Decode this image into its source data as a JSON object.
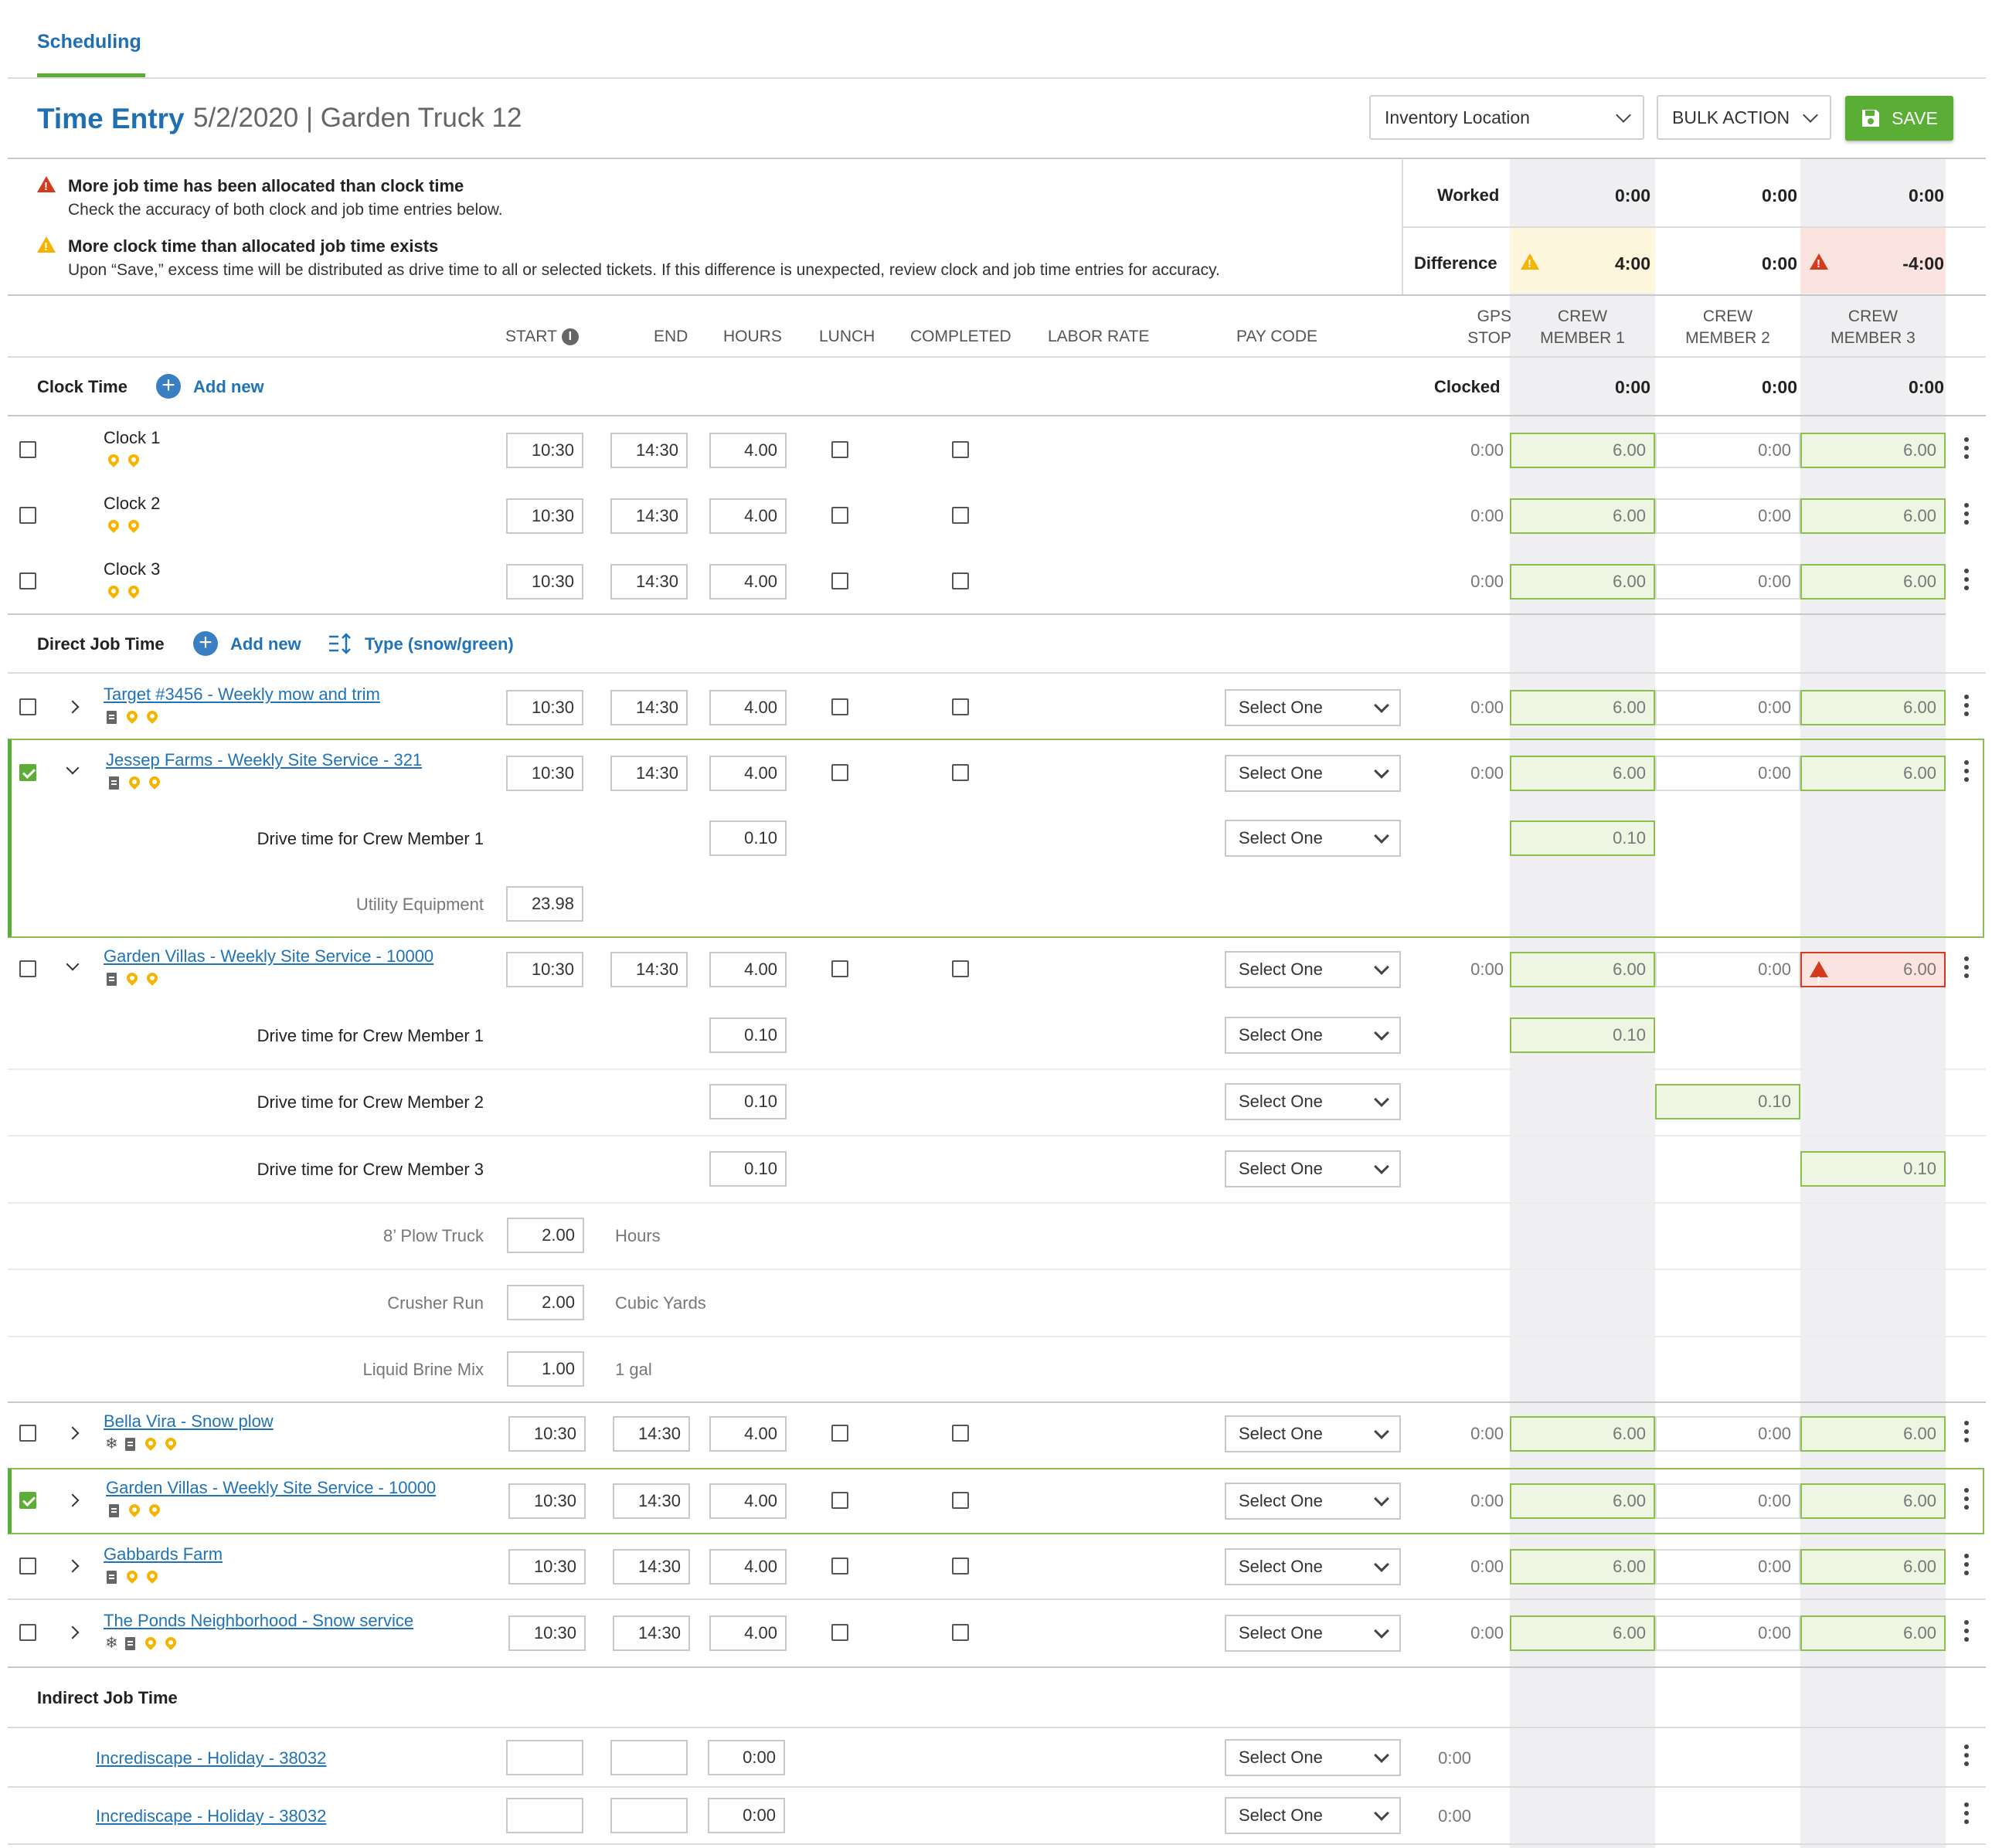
{
  "tabs": {
    "active": "Scheduling"
  },
  "header": {
    "title": "Time Entry",
    "subtitle": "5/2/2020 | Garden Truck 12",
    "inventory_placeholder": "Inventory Location",
    "bulk_action": "BULK ACTION",
    "save": "SAVE"
  },
  "alerts": [
    {
      "title": "More job time has been allocated than clock time",
      "text": "Check the accuracy of both clock and job time entries below.",
      "level": "error"
    },
    {
      "title": "More clock time than allocated job time exists",
      "text": "Upon “Save,” excess time will be distributed as drive time to all or selected tickets. If this difference is unexpected, review clock and job time entries for accuracy.",
      "level": "warning"
    }
  ],
  "summary": {
    "worked_label": "Worked",
    "worked": [
      "0:00",
      "0:00",
      "0:00"
    ],
    "difference_label": "Difference",
    "difference": [
      "4:00",
      "0:00",
      "-4:00"
    ]
  },
  "columns": {
    "start": "START",
    "end": "END",
    "hours": "HOURS",
    "lunch": "LUNCH",
    "completed": "COMPLETED",
    "labor_rate": "LABOR RATE",
    "pay_code": "PAY CODE",
    "gps_stop": [
      "GPS",
      "STOP"
    ],
    "crew": [
      [
        "CREW",
        "MEMBER 1"
      ],
      [
        "CREW",
        "MEMBER 2"
      ],
      [
        "CREW",
        "MEMBER 3"
      ]
    ]
  },
  "clock_section": {
    "title": "Clock Time",
    "add_new": "Add new",
    "clocked_label": "Clocked",
    "clocked": [
      "0:00",
      "0:00",
      "0:00"
    ]
  },
  "clocks": [
    {
      "name": "Clock 1",
      "start": "10:30",
      "end": "14:30",
      "hours": "4.00",
      "gps": "0:00",
      "crew": [
        "6.00",
        "0:00",
        "6.00"
      ]
    },
    {
      "name": "Clock 2",
      "start": "10:30",
      "end": "14:30",
      "hours": "4.00",
      "gps": "0:00",
      "crew": [
        "6.00",
        "0:00",
        "6.00"
      ]
    },
    {
      "name": "Clock 3",
      "start": "10:30",
      "end": "14:30",
      "hours": "4.00",
      "gps": "0:00",
      "crew": [
        "6.00",
        "0:00",
        "6.00"
      ]
    }
  ],
  "direct_section": {
    "title": "Direct Job Time",
    "add_new": "Add new",
    "type_toggle": "Type (snow/green)"
  },
  "select_one": "Select One",
  "jobs": {
    "j1": {
      "name": "Target #3456 - Weekly mow and trim",
      "start": "10:30",
      "end": "14:30",
      "hours": "4.00",
      "gps": "0:00",
      "crew": [
        "6.00",
        "0:00",
        "6.00"
      ]
    },
    "j2": {
      "name": "Jessep Farms - Weekly Site Service  - 321",
      "start": "10:30",
      "end": "14:30",
      "hours": "4.00",
      "gps": "0:00",
      "crew": [
        "6.00",
        "0:00",
        "6.00"
      ],
      "drive": {
        "label": "Drive time for Crew Member 1",
        "hours": "0.10",
        "crew": "0.10"
      },
      "equipment": {
        "label": "Utility Equipment",
        "value": "23.98"
      }
    },
    "j3": {
      "name": "Garden Villas - Weekly Site Service  - 10000",
      "start": "10:30",
      "end": "14:30",
      "hours": "4.00",
      "gps": "0:00",
      "crew": [
        "6.00",
        "0:00",
        "6.00"
      ],
      "drives": [
        {
          "label": "Drive time for Crew Member 1",
          "hours": "0.10",
          "crew": "0.10"
        },
        {
          "label": "Drive time for Crew Member 2",
          "hours": "0.10",
          "crew": "0.10"
        },
        {
          "label": "Drive time for Crew Member 3",
          "hours": "0.10",
          "crew": "0.10"
        }
      ],
      "materials": [
        {
          "label": "8’ Plow Truck",
          "value": "2.00",
          "unit": "Hours"
        },
        {
          "label": "Crusher Run",
          "value": "2.00",
          "unit": "Cubic Yards"
        },
        {
          "label": "Liquid Brine Mix",
          "value": "1.00",
          "unit": "1 gal"
        }
      ]
    },
    "j4": {
      "name": "Bella Vira - Snow plow",
      "start": "10:30",
      "end": "14:30",
      "hours": "4.00",
      "gps": "0:00",
      "crew": [
        "6.00",
        "0:00",
        "6.00"
      ]
    },
    "j5": {
      "name": "Garden Villas - Weekly Site Service - 10000",
      "start": "10:30",
      "end": "14:30",
      "hours": "4.00",
      "gps": "0:00",
      "crew": [
        "6.00",
        "0:00",
        "6.00"
      ]
    },
    "j6": {
      "name": "Gabbards Farm",
      "start": "10:30",
      "end": "14:30",
      "hours": "4.00",
      "gps": "0:00",
      "crew": [
        "6.00",
        "0:00",
        "6.00"
      ]
    },
    "j7": {
      "name": "The Ponds Neighborhood - Snow service",
      "start": "10:30",
      "end": "14:30",
      "hours": "4.00",
      "gps": "0:00",
      "crew": [
        "6.00",
        "0:00",
        "6.00"
      ]
    }
  },
  "indirect_section": {
    "title": "Indirect Job Time"
  },
  "indirect": [
    {
      "name": "Incrediscape - Holiday - 38032",
      "hours": "0:00",
      "gps": "0:00"
    },
    {
      "name": "Incrediscape - Holiday - 38032",
      "hours": "0:00",
      "gps": "0:00"
    }
  ],
  "colors": {
    "brand_blue": "#1f6fb2",
    "accent_green": "#5aae36",
    "warning": "#f4b400",
    "error": "#d33b1f"
  }
}
